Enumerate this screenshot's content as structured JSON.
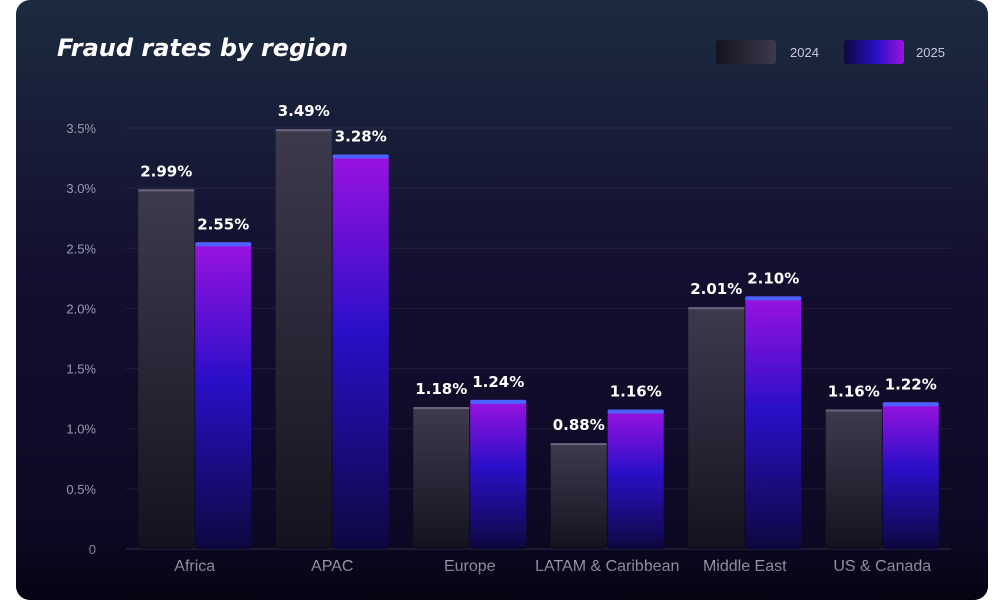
{
  "chart_data": {
    "type": "bar",
    "title": "Fraud rates by region",
    "categories": [
      "Africa",
      "APAC",
      "Europe",
      "LATAM & Caribbean",
      "Middle East",
      "US & Canada"
    ],
    "series": [
      {
        "name": "2024",
        "values": [
          2.99,
          3.49,
          1.18,
          0.88,
          2.01,
          1.16
        ],
        "labels": [
          "2.99%",
          "3.49%",
          "1.18%",
          "0.88%",
          "2.01%",
          "1.16%"
        ],
        "color": "#3a3648"
      },
      {
        "name": "2025",
        "values": [
          2.55,
          3.28,
          1.24,
          1.16,
          2.1,
          1.22
        ],
        "labels": [
          "2.55%",
          "3.28%",
          "1.24%",
          "1.16%",
          "2.10%",
          "1.22%"
        ],
        "color": "#8a16d6"
      }
    ],
    "ylim": [
      0,
      3.5
    ],
    "yticks": [
      0,
      0.5,
      1.0,
      1.5,
      2.0,
      2.5,
      3.0,
      3.5
    ],
    "ytick_labels": [
      "0",
      "0.5%",
      "1.0%",
      "1.5%",
      "2.0%",
      "2.5%",
      "3.0%",
      "3.5%"
    ],
    "xlabel": "",
    "ylabel": "",
    "grid": true,
    "legend_position": "top-right"
  },
  "colors": {
    "bar_2024_top": "#3e3a4e",
    "bar_2024_bottom": "#15121f",
    "bar_2025_top": "#9a12e0",
    "bar_2025_mid": "#2a0fc8",
    "bar_2025_bottom": "#0d0840",
    "bar_2025_cap": "#4a63ff"
  }
}
